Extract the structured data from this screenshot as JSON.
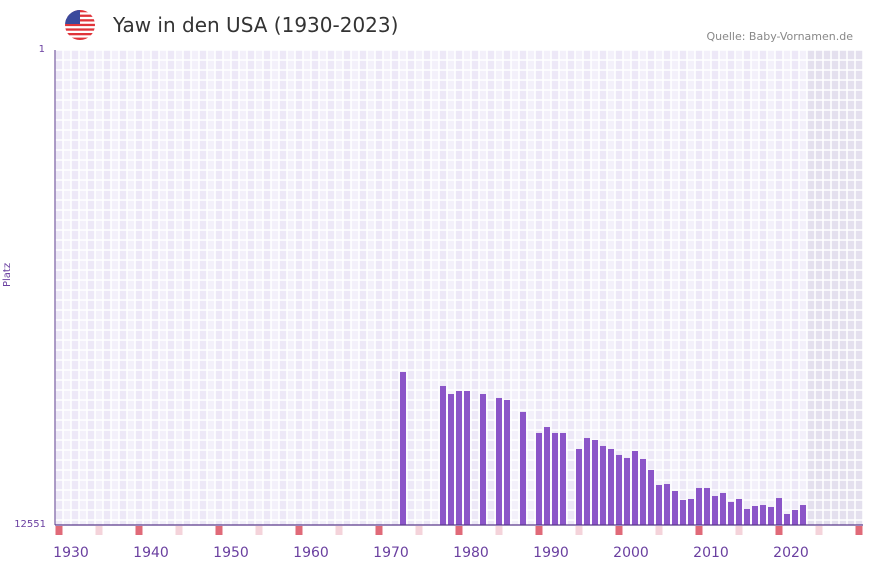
{
  "header": {
    "title": "Yaw in den USA (1930-2023)",
    "source": "Quelle: Baby-Vornamen.de",
    "flag_icon": "us-flag-icon"
  },
  "colors": {
    "bar": "#8b55c8",
    "axis": "#5b3a8c",
    "marker_strong": "#e06a78",
    "marker_light": "#f4d3da",
    "shade": "#e4e0ee"
  },
  "chart_data": {
    "type": "bar",
    "title": "Yaw in den USA (1930-2023)",
    "xlabel": "",
    "ylabel": "Platz",
    "ylim": [
      1,
      12551
    ],
    "y_inverted": true,
    "ytick_labels": [
      "1",
      "12551"
    ],
    "xlim": [
      1929,
      2029
    ],
    "xtick_labels": [
      "1930",
      "1940",
      "1950",
      "1960",
      "1970",
      "1980",
      "1990",
      "2000",
      "2010",
      "2020"
    ],
    "shaded_from_year": 2023,
    "grid": true,
    "years": [
      1972,
      1977,
      1978,
      1979,
      1980,
      1982,
      1984,
      1985,
      1987,
      1989,
      1990,
      1991,
      1992,
      1994,
      1995,
      1996,
      1997,
      1998,
      1999,
      2000,
      2001,
      2002,
      2003,
      2004,
      2005,
      2006,
      2007,
      2008,
      2009,
      2010,
      2011,
      2012,
      2013,
      2014,
      2015,
      2016,
      2017,
      2018,
      2019,
      2020,
      2021,
      2022
    ],
    "values": [
      8509,
      8878,
      9090,
      9010,
      9010,
      9090,
      9195,
      9248,
      9565,
      10120,
      9962,
      10120,
      10120,
      10543,
      10252,
      10305,
      10463,
      10543,
      10701,
      10780,
      10596,
      10807,
      11097,
      11494,
      11468,
      11652,
      11890,
      11864,
      11573,
      11573,
      11785,
      11705,
      11943,
      11864,
      12128,
      12049,
      12023,
      12075,
      11838,
      12260,
      12154,
      12023
    ]
  }
}
